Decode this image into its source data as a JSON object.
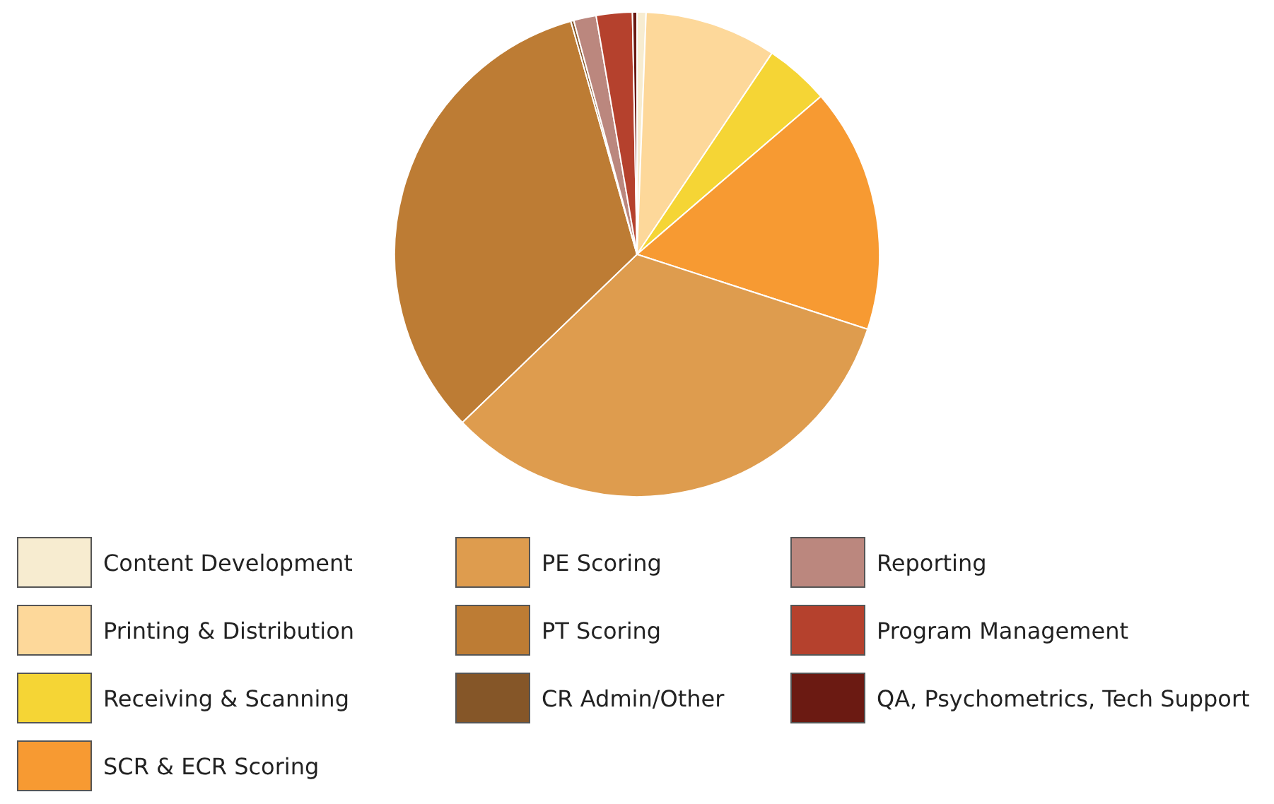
{
  "chart_data": {
    "type": "pie",
    "legend": "bottom",
    "categories": [
      "Content Development",
      "Printing & Distribution",
      "Receiving & Scanning",
      "SCR & ECR Scoring",
      "PE Scoring",
      "PT Scoring",
      "CR Admin/Other",
      "Reporting",
      "Program Management",
      "QA, Psychometrics, Tech Support"
    ],
    "values": [
      0.6,
      8.8,
      4.3,
      16.3,
      32.8,
      32.8,
      0.2,
      1.5,
      2.4,
      0.3
    ],
    "colors": [
      "#f7ecd0",
      "#fdd89a",
      "#f5d535",
      "#f79a32",
      "#de9c4e",
      "#bd7c34",
      "#855628",
      "#bb877e",
      "#b5412d",
      "#6b1a12"
    ]
  }
}
